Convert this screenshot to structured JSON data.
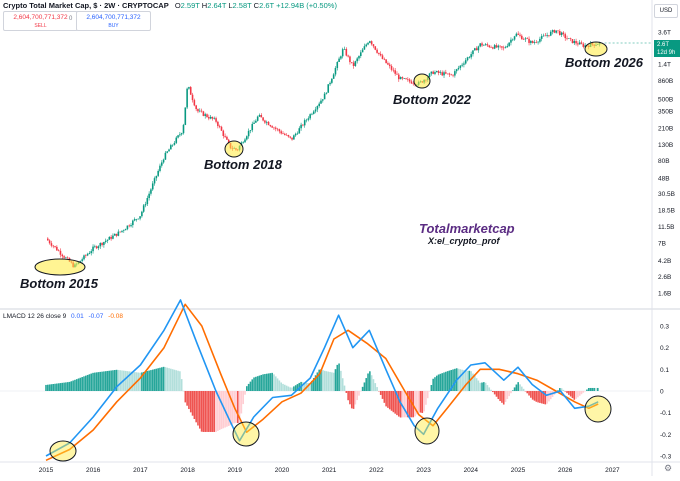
{
  "header": {
    "title": "Crypto Total Market Cap, $ · 2W · CRYPTOCAP",
    "ohlc": [
      {
        "label": "O",
        "value": "2.59T"
      },
      {
        "label": "H",
        "value": "2.64T"
      },
      {
        "label": "L",
        "value": "2.58T"
      },
      {
        "label": "C",
        "value": "2.6T"
      }
    ],
    "change": "+12.94B (+0.50%)",
    "sell_price": "2,604,700,771,372",
    "sell_label": "SELL",
    "spread": "0",
    "buy_price": "2,604,700,771,372",
    "buy_label": "BUY",
    "currency_button": "USD",
    "last_price": "2.6T",
    "countdown": "12d 9h"
  },
  "annotations": {
    "bottom_2015": "Bottom 2015",
    "bottom_2018": "Bottom 2018",
    "bottom_2022": "Bottom 2022",
    "bottom_2026": "Bottom 2026",
    "watermark": "Totalmarketcap",
    "author": "X:el_crypto_prof"
  },
  "macd_header": {
    "label": "LMACD 12 26 close 9",
    "histogram": "0.01",
    "macd": "-0.07",
    "signal": "-0.08"
  },
  "colors": {
    "up": "#089981",
    "down": "#f23645",
    "macd": "#2196f3",
    "signal": "#ff6d00",
    "hist_up_strong": "#26a69a",
    "hist_up_weak": "#b2dfdb",
    "hist_down_strong": "#ef5350",
    "hist_down_weak": "#ffcdd2",
    "highlight": "#ffeb3b"
  },
  "chart_data": [
    {
      "type": "candlestick",
      "title": "Crypto Total Market Cap, $ · 2W · CRYPTOCAP",
      "y_scale": "log",
      "y_ticks": [
        "3.6T",
        "2.2T",
        "1.4T",
        "860B",
        "500B",
        "350B",
        "210B",
        "130B",
        "80B",
        "48B",
        "30.5B",
        "18.5B",
        "11.5B",
        "7B",
        "4.2B",
        "2.6B",
        "1.6B"
      ],
      "x_ticks": [
        "2015",
        "2016",
        "2017",
        "2018",
        "2019",
        "2020",
        "2021",
        "2022",
        "2023",
        "2024",
        "2025",
        "2026",
        "2027"
      ],
      "close_path": [
        [
          2015.0,
          8
        ],
        [
          2015.6,
          3.5
        ],
        [
          2016.0,
          6
        ],
        [
          2016.6,
          10
        ],
        [
          2017.0,
          16
        ],
        [
          2017.5,
          90
        ],
        [
          2017.9,
          200
        ],
        [
          2018.0,
          750
        ],
        [
          2018.2,
          350
        ],
        [
          2018.6,
          260
        ],
        [
          2018.9,
          120
        ],
        [
          2019.05,
          110
        ],
        [
          2019.5,
          300
        ],
        [
          2019.9,
          200
        ],
        [
          2020.2,
          150
        ],
        [
          2020.9,
          550
        ],
        [
          2021.3,
          2200
        ],
        [
          2021.5,
          1300
        ],
        [
          2021.85,
          2900
        ],
        [
          2022.1,
          1700
        ],
        [
          2022.5,
          900
        ],
        [
          2022.9,
          780
        ],
        [
          2023.2,
          1100
        ],
        [
          2023.6,
          1000
        ],
        [
          2023.9,
          1600
        ],
        [
          2024.2,
          2500
        ],
        [
          2024.7,
          2200
        ],
        [
          2024.95,
          3400
        ],
        [
          2025.3,
          2600
        ],
        [
          2025.8,
          3800
        ],
        [
          2026.1,
          2800
        ],
        [
          2026.4,
          2400
        ],
        [
          2026.75,
          2600
        ]
      ]
    },
    {
      "type": "macd",
      "title": "LMACD 12 26 close 9",
      "y_ticks": [
        "0.3",
        "0.2",
        "0.1",
        "0",
        "-0.1",
        "-0.2",
        "-0.3"
      ],
      "x_ticks": [
        "2015",
        "2016",
        "2017",
        "2018",
        "2019",
        "2020",
        "2021",
        "2022",
        "2023",
        "2024",
        "2025",
        "2026",
        "2027"
      ],
      "macd": [
        [
          2015.0,
          -0.3
        ],
        [
          2015.5,
          -0.24
        ],
        [
          2016.0,
          -0.12
        ],
        [
          2016.5,
          0.02
        ],
        [
          2017.0,
          0.12
        ],
        [
          2017.5,
          0.28
        ],
        [
          2017.85,
          0.42
        ],
        [
          2018.2,
          0.22
        ],
        [
          2018.6,
          0.0
        ],
        [
          2018.9,
          -0.14
        ],
        [
          2019.1,
          -0.23
        ],
        [
          2019.4,
          -0.12
        ],
        [
          2019.8,
          -0.03
        ],
        [
          2020.2,
          -0.02
        ],
        [
          2020.6,
          0.06
        ],
        [
          2020.9,
          0.2
        ],
        [
          2021.2,
          0.35
        ],
        [
          2021.5,
          0.2
        ],
        [
          2021.85,
          0.28
        ],
        [
          2022.2,
          0.1
        ],
        [
          2022.5,
          -0.05
        ],
        [
          2022.8,
          -0.16
        ],
        [
          2023.0,
          -0.2
        ],
        [
          2023.3,
          -0.08
        ],
        [
          2023.7,
          0.05
        ],
        [
          2024.0,
          0.12
        ],
        [
          2024.3,
          0.13
        ],
        [
          2024.7,
          0.05
        ],
        [
          2025.0,
          0.11
        ],
        [
          2025.3,
          0.03
        ],
        [
          2025.6,
          -0.02
        ],
        [
          2025.9,
          0.0
        ],
        [
          2026.2,
          -0.08
        ],
        [
          2026.5,
          -0.07
        ],
        [
          2026.7,
          -0.05
        ]
      ],
      "signal": [
        [
          2015.0,
          -0.32
        ],
        [
          2015.5,
          -0.27
        ],
        [
          2016.0,
          -0.18
        ],
        [
          2016.5,
          -0.05
        ],
        [
          2017.0,
          0.06
        ],
        [
          2017.5,
          0.2
        ],
        [
          2017.95,
          0.4
        ],
        [
          2018.3,
          0.3
        ],
        [
          2018.7,
          0.08
        ],
        [
          2019.0,
          -0.08
        ],
        [
          2019.25,
          -0.19
        ],
        [
          2019.6,
          -0.13
        ],
        [
          2020.0,
          -0.05
        ],
        [
          2020.4,
          -0.01
        ],
        [
          2020.8,
          0.08
        ],
        [
          2021.1,
          0.24
        ],
        [
          2021.4,
          0.28
        ],
        [
          2021.8,
          0.22
        ],
        [
          2022.2,
          0.15
        ],
        [
          2022.6,
          0.0
        ],
        [
          2022.9,
          -0.11
        ],
        [
          2023.2,
          -0.16
        ],
        [
          2023.5,
          -0.08
        ],
        [
          2023.9,
          0.03
        ],
        [
          2024.2,
          0.1
        ],
        [
          2024.6,
          0.1
        ],
        [
          2025.0,
          0.08
        ],
        [
          2025.4,
          0.05
        ],
        [
          2025.8,
          0.0
        ],
        [
          2026.2,
          -0.05
        ],
        [
          2026.5,
          -0.08
        ],
        [
          2026.7,
          -0.06
        ]
      ]
    }
  ]
}
